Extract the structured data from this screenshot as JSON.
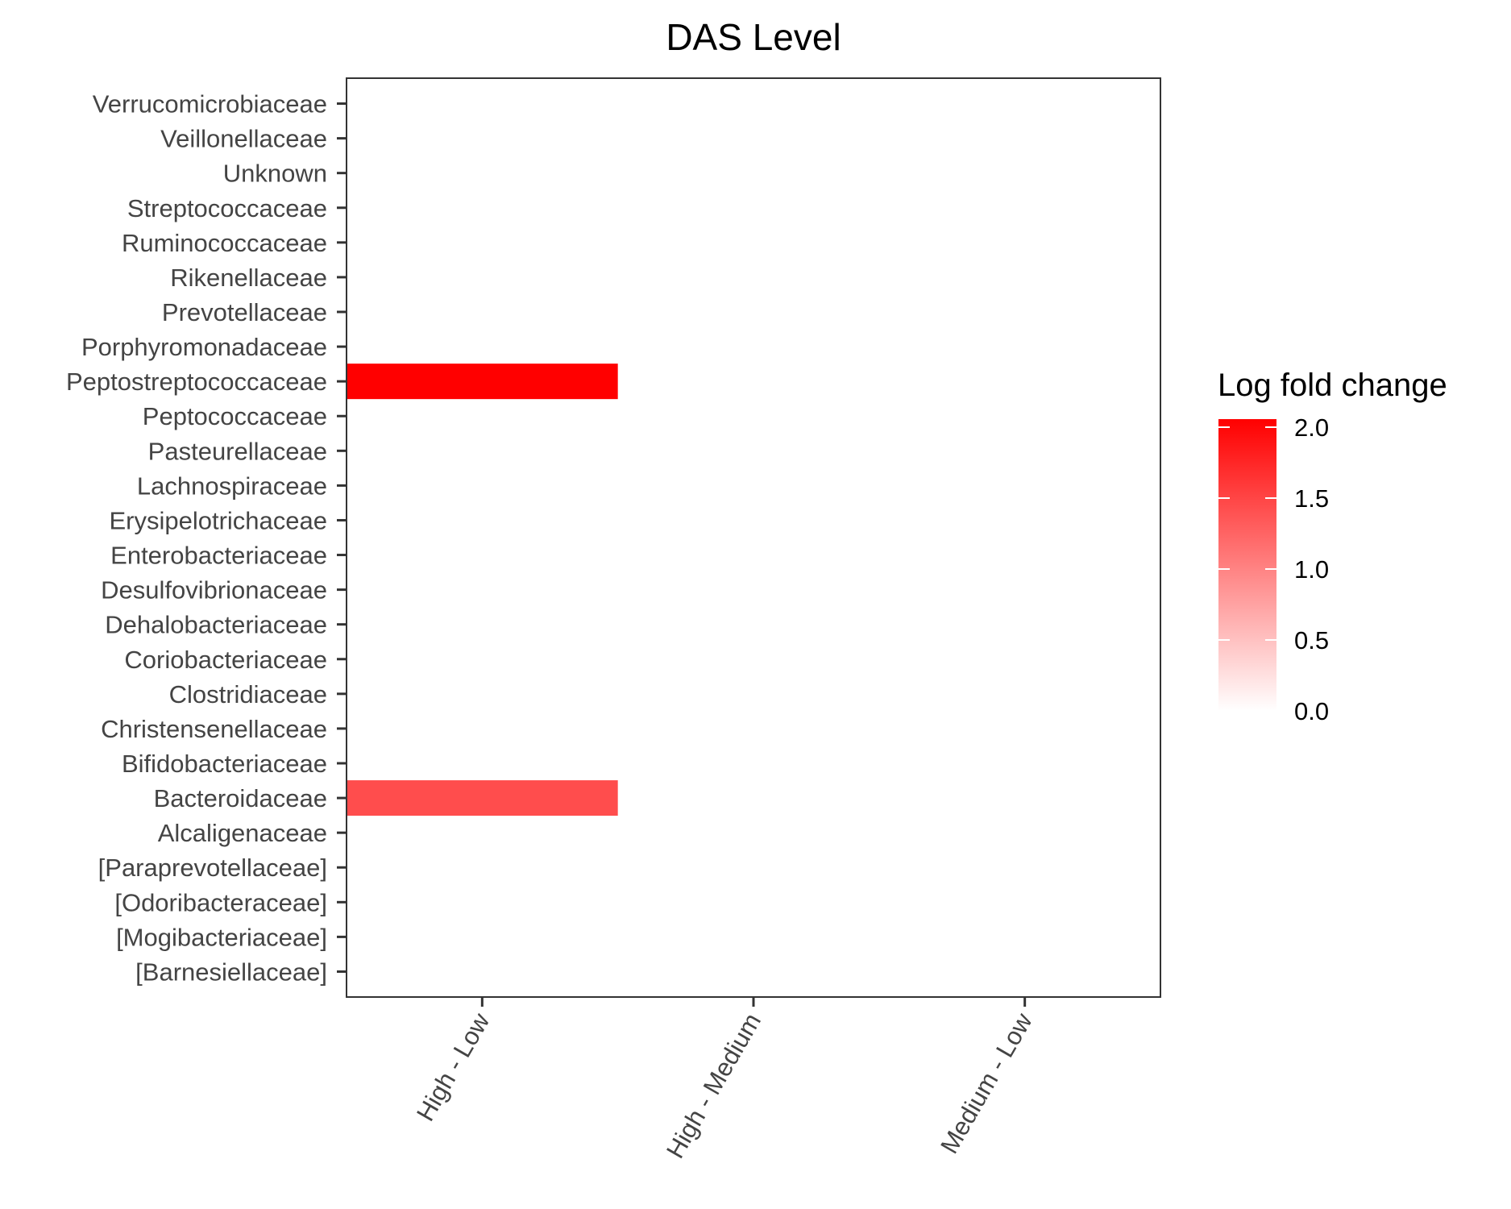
{
  "chart_data": {
    "type": "heatmap",
    "title": "DAS Level",
    "xlabel": "",
    "ylabel": "",
    "x_categories": [
      "High - Low",
      "High - Medium",
      "Medium - Low"
    ],
    "y_categories": [
      "Verrucomicrobiaceae",
      "Veillonellaceae",
      "Unknown",
      "Streptococcaceae",
      "Ruminococcaceae",
      "Rikenellaceae",
      "Prevotellaceae",
      "Porphyromonadaceae",
      "Peptostreptococcaceae",
      "Peptococcaceae",
      "Pasteurellaceae",
      "Lachnospiraceae",
      "Erysipelotrichaceae",
      "Enterobacteriaceae",
      "Desulfovibrionaceae",
      "Dehalobacteriaceae",
      "Coriobacteriaceae",
      "Clostridiaceae",
      "Christensenellaceae",
      "Bifidobacteriaceae",
      "Bacteroidaceae",
      "Alcaligenaceae",
      "[Paraprevotellaceae]",
      "[Odoribacteraceae]",
      "[Mogibacteriaceae]",
      "[Barnesiellaceae]"
    ],
    "cells": [
      {
        "x": "High - Low",
        "y": "Peptostreptococcaceae",
        "value": 2.0
      },
      {
        "x": "High - Low",
        "y": "Bacteroidaceae",
        "value": 1.4
      }
    ],
    "legend": {
      "title": "Log fold change",
      "position": "right",
      "range": [
        0.0,
        2.0
      ],
      "ticks": [
        "0.0",
        "0.5",
        "1.0",
        "1.5",
        "2.0"
      ],
      "low_color": "#ffffff",
      "high_color": "#ff0000"
    },
    "grid": false
  }
}
